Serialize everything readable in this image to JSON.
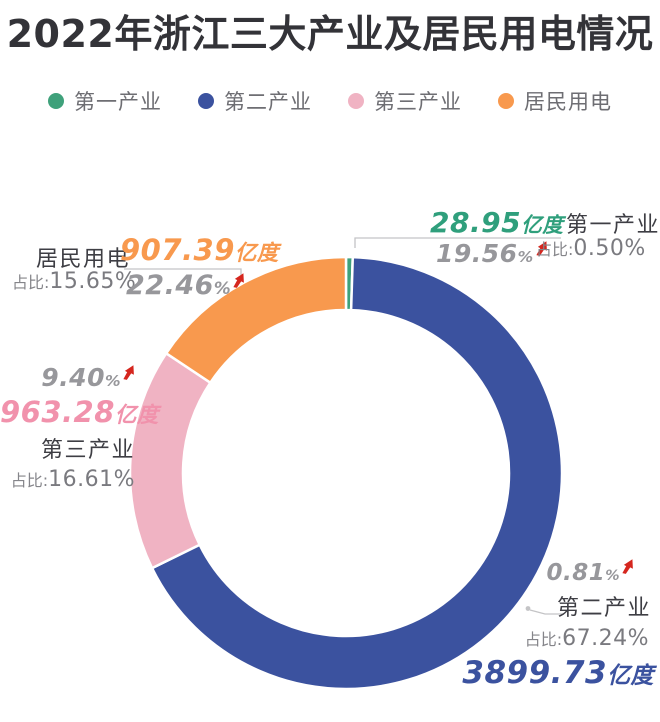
{
  "title": "2022年浙江三大产业及居民用电情况",
  "symbols": {
    "percent": "%"
  },
  "legend": {
    "items": [
      {
        "label": "第一产业",
        "color": "#3FA17B"
      },
      {
        "label": "第二产业",
        "color": "#3B529F"
      },
      {
        "label": "第三产业",
        "color": "#F0B3C3"
      },
      {
        "label": "居民用电",
        "color": "#F8994E"
      }
    ]
  },
  "chart_data": {
    "type": "pie",
    "donut": true,
    "title": "2022年浙江三大产业及居民用电情况",
    "categories": [
      "第一产业",
      "第二产业",
      "第三产业",
      "居民用电"
    ],
    "values": [
      0.5,
      67.24,
      16.61,
      15.65
    ],
    "amounts_yidu": [
      28.95,
      3899.73,
      963.28,
      907.39
    ],
    "growth_percent": [
      19.56,
      0.81,
      9.4,
      22.46
    ],
    "unit_label": "亿度",
    "share_label": "占比",
    "slice_colors": [
      "#3FA17B",
      "#3B529F",
      "#F0B3C3",
      "#F8994E"
    ],
    "slice_order": "clockwise-from-top",
    "legend_position": "top",
    "colors": {
      "rise_arrow": "#D5261E",
      "growth_text": "#97979B",
      "leader_line": "#C4C4C6"
    }
  },
  "callouts": {
    "primary": {
      "value": "28.95",
      "unit": "亿度",
      "growth": "19.56",
      "name": "第一产业",
      "share_prefix": "占比:",
      "share": "0.50%"
    },
    "residential": {
      "name": "居民用电",
      "value": "907.39",
      "unit": "亿度",
      "share_prefix": "占比:",
      "share": "15.65%",
      "growth": "22.46"
    },
    "tertiary": {
      "growth": "9.40",
      "value": "963.28",
      "unit": "亿度",
      "name": "第三产业",
      "share_prefix": "占比:",
      "share": "16.61%"
    },
    "secondary": {
      "growth": "0.81",
      "name": "第二产业",
      "share_prefix": "占比:",
      "share": "67.24%",
      "value": "3899.73",
      "unit": "亿度"
    }
  }
}
